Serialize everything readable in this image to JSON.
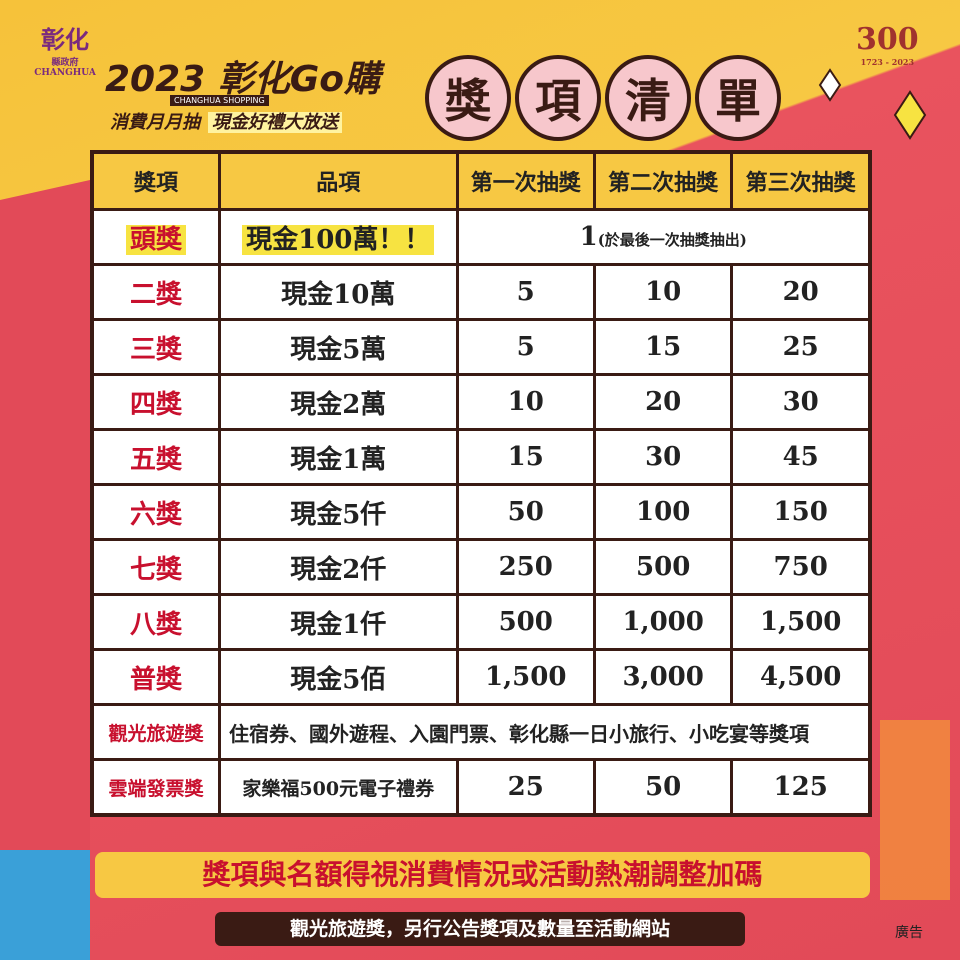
{
  "header": {
    "logo": "彰化",
    "logo_sub": "縣政府",
    "logo_en": "CHANGHUA",
    "title": "2023 彰化Go購",
    "title_en": "CHANGHUA SHOPPING",
    "slogan_1": "消費月月抽",
    "slogan_2": "現金好禮大放送",
    "banner": [
      "獎",
      "項",
      "清",
      "單"
    ],
    "anniversary": "300",
    "anniversary_years": "1723 - 2023"
  },
  "table": {
    "columns": [
      "獎項",
      "品項",
      "第一次抽獎",
      "第二次抽獎",
      "第三次抽獎"
    ],
    "rows": [
      [
        "頭獎",
        "現金100萬！！",
        "1",
        "(於最後一次抽獎抽出)"
      ],
      [
        "二獎",
        "現金10萬",
        "5",
        "10",
        "20"
      ],
      [
        "三獎",
        "現金5萬",
        "5",
        "15",
        "25"
      ],
      [
        "四獎",
        "現金2萬",
        "10",
        "20",
        "30"
      ],
      [
        "五獎",
        "現金1萬",
        "15",
        "30",
        "45"
      ],
      [
        "六獎",
        "現金5仟",
        "50",
        "100",
        "150"
      ],
      [
        "七獎",
        "現金2仟",
        "250",
        "500",
        "750"
      ],
      [
        "八獎",
        "現金1仟",
        "500",
        "1,000",
        "1,500"
      ],
      [
        "普獎",
        "現金5佰",
        "1,500",
        "3,000",
        "4,500"
      ],
      [
        "觀光旅遊獎",
        "住宿券、國外遊程、入園門票、彰化縣一日小旅行、小吃宴等獎項"
      ],
      [
        "雲端發票獎",
        "家樂福500元電子禮券",
        "25",
        "50",
        "125"
      ]
    ]
  },
  "footer": {
    "notice": "獎項與名額得視消費情況或活動熱潮調整加碼",
    "note": "觀光旅遊獎，另行公告獎項及數量至活動網站",
    "ad": "廣告"
  }
}
